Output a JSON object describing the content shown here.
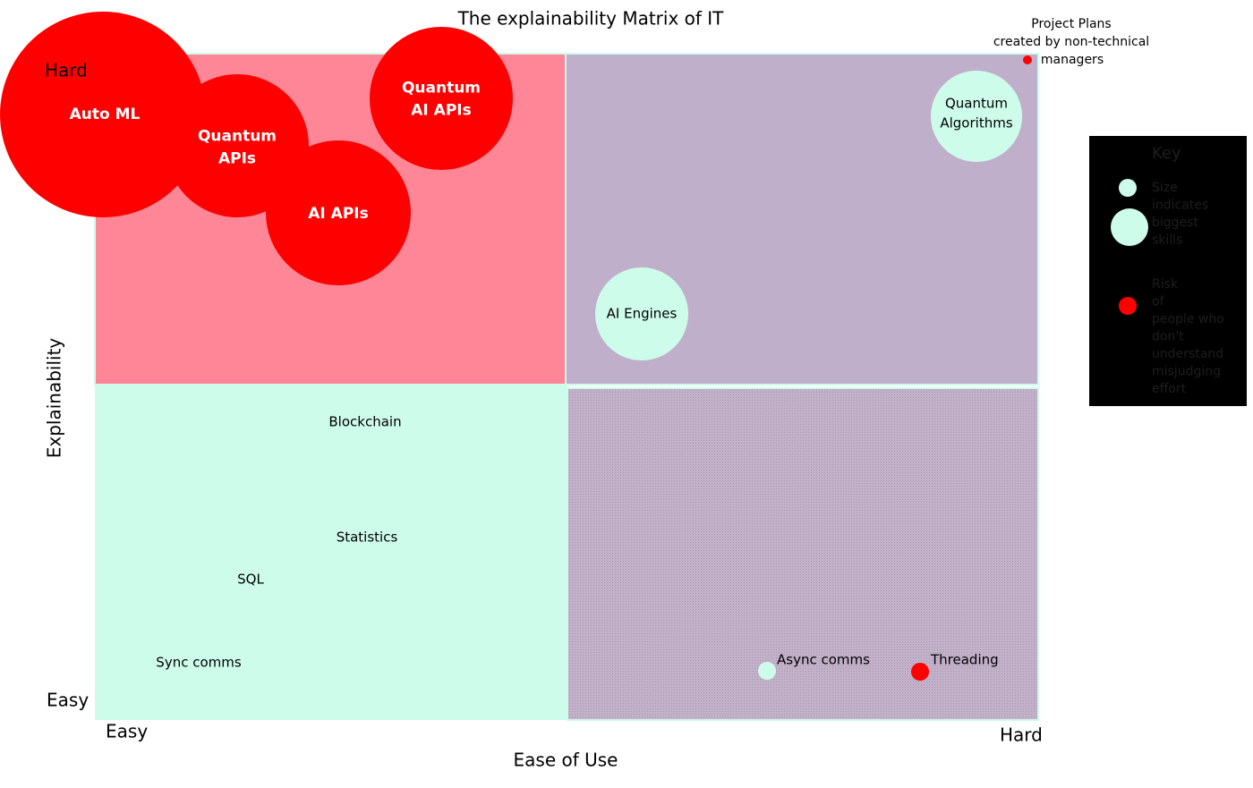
{
  "title": "The explainability Matrix of IT",
  "axes": {
    "x_label": "Ease of Use",
    "y_label": "Explainability",
    "x_low": "Easy",
    "x_high": "Hard",
    "y_low": "Easy",
    "y_high": "Hard"
  },
  "items": [
    {
      "lines": [
        "Auto ML"
      ]
    },
    {
      "lines": [
        "Quantum",
        "APIs"
      ]
    },
    {
      "lines": [
        "AI APIs"
      ]
    },
    {
      "lines": [
        "Quantum",
        "AI APIs"
      ]
    },
    {
      "lines": [
        "Quantum",
        "Algorithms"
      ]
    },
    {
      "lines": [
        "AI Engines"
      ]
    },
    {
      "lines": [
        "Blockchain"
      ]
    },
    {
      "lines": [
        "Statistics"
      ]
    },
    {
      "lines": [
        "SQL"
      ]
    },
    {
      "lines": [
        "Sync comms"
      ]
    },
    {
      "lines": [
        "Async comms"
      ]
    },
    {
      "lines": [
        "Threading"
      ]
    },
    {
      "lines": [
        "Project Plans",
        "created by non-technical",
        "managers"
      ]
    }
  ],
  "key": {
    "title": "Key",
    "size_lines": [
      "Size",
      "indicates",
      "biggest",
      "skills"
    ],
    "red_lines": [
      "Risk",
      "of",
      "people who",
      "don't",
      "understand",
      "misjudging",
      "effort"
    ]
  }
}
